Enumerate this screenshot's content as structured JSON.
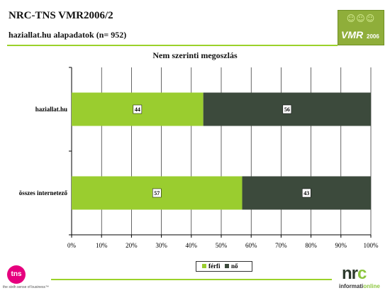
{
  "header": {
    "title": "NRC-TNS VMR2006/2",
    "subtitle": "haziallat.hu alapadatok (n= 952)"
  },
  "logos": {
    "vmr_text": "VMR",
    "vmr_year": "2006",
    "tns_text": "tns",
    "tns_tagline": "the sixth sense of business™",
    "nrc_n": "nr",
    "nrc_c": "c",
    "info_main": "informati",
    "info_online": "online"
  },
  "colors": {
    "ferfi": "#9acd2f",
    "no": "#3c4a3c",
    "accent": "#9bd22a",
    "grid": "#000000"
  },
  "chart_data": {
    "type": "bar",
    "orientation": "horizontal",
    "stacked": "percent",
    "title": "Nem szerinti megoszlás",
    "categories": [
      "haziallat.hu",
      "összes internetező"
    ],
    "series": [
      {
        "name": "férfi",
        "values": [
          44,
          57
        ],
        "color": "#9acd2f"
      },
      {
        "name": "nő",
        "values": [
          56,
          43
        ],
        "color": "#3c4a3c"
      }
    ],
    "xlim": [
      0,
      100
    ],
    "xticks": [
      "0%",
      "10%",
      "20%",
      "30%",
      "40%",
      "50%",
      "60%",
      "70%",
      "80%",
      "90%",
      "100%"
    ],
    "grid": true,
    "legend": "bottom"
  }
}
